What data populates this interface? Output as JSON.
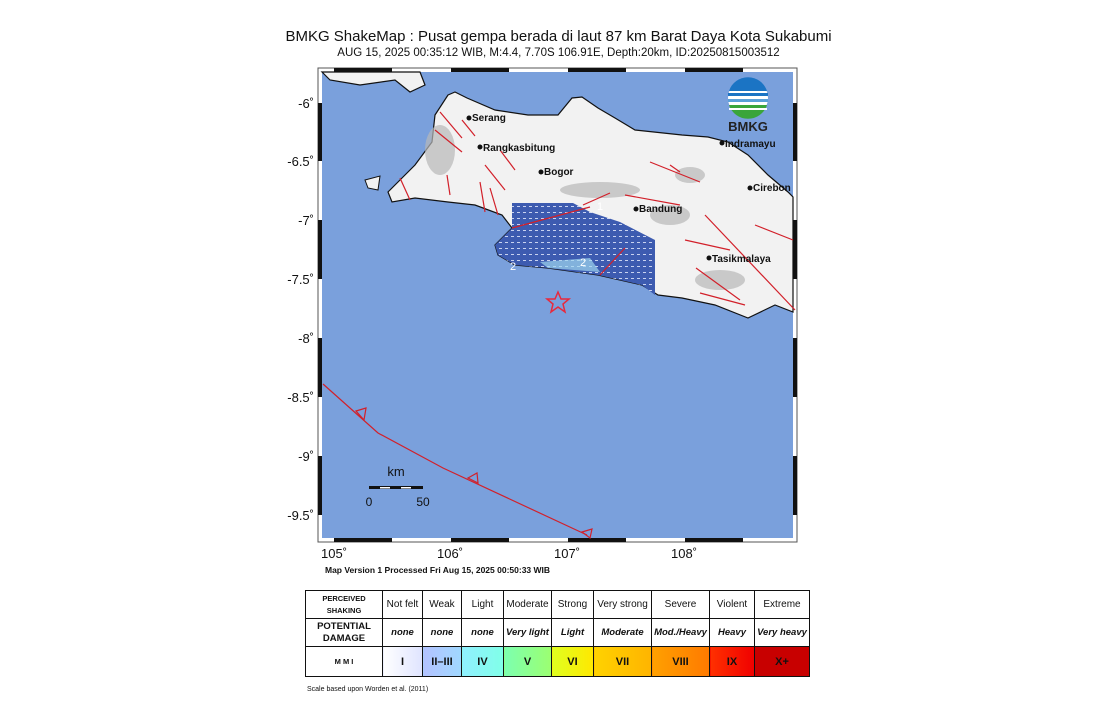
{
  "header": {
    "title": "BMKG ShakeMap : Pusat gempa berada di laut 87 km Barat Daya Kota Sukabumi",
    "subtitle": "AUG 15, 2025 00:35:12 WIB, M:4.4, 7.70S 106.91E, Depth:20km, ID:20250815003512"
  },
  "map": {
    "logo_text": "BMKG",
    "lat_ticks": [
      "-6˚",
      "-6.5˚",
      "-7˚",
      "-7.5˚",
      "-8˚",
      "-8.5˚",
      "-9˚",
      "-9.5˚"
    ],
    "lon_ticks": [
      "105˚",
      "106˚",
      "107˚",
      "108˚"
    ],
    "cities": [
      "Serang",
      "Rangkasbitung",
      "Bogor",
      "Bandung",
      "Indramayu",
      "Cirebon",
      "Tasikmalaya"
    ],
    "contour_labels": [
      "1",
      "2",
      "2"
    ],
    "epicenter": {
      "lat": -7.7,
      "lon": 106.91,
      "icon": "star-icon",
      "color": "#e8283c"
    },
    "scale_bar": {
      "unit": "km",
      "start": "0",
      "end": "50"
    },
    "colors": {
      "sea": "#7aa0dc",
      "land": "#f2f2f2",
      "fault": "#d2202a",
      "intensity_zone": "#3d5bb0"
    }
  },
  "footer": {
    "version": "Map Version 1 Processed Fri Aug 15, 2025 00:50:33 WIB",
    "scale_note": "Scale based upon Worden et al. (2011)"
  },
  "legend": {
    "row_headers": {
      "shaking": [
        "PERCEIVED",
        "SHAKING"
      ],
      "damage": [
        "POTENTIAL",
        "DAMAGE"
      ],
      "mmi": "M M I"
    },
    "shaking": [
      "Not felt",
      "Weak",
      "Light",
      "Moderate",
      "Strong",
      "Very strong",
      "Severe",
      "Violent",
      "Extreme"
    ],
    "damage": [
      "none",
      "none",
      "none",
      "Very light",
      "Light",
      "Moderate",
      "Mod./Heavy",
      "Heavy",
      "Very heavy"
    ],
    "mmi": [
      "I",
      "II–III",
      "IV",
      "V",
      "VI",
      "VII",
      "VIII",
      "IX",
      "X+"
    ],
    "mmi_colors": [
      "#ffffff",
      "#b3c2ff",
      "#80ffff",
      "#7cff9c",
      "#ffff00",
      "#ffc800",
      "#ff9100",
      "#ff0000",
      "#c80000"
    ]
  }
}
